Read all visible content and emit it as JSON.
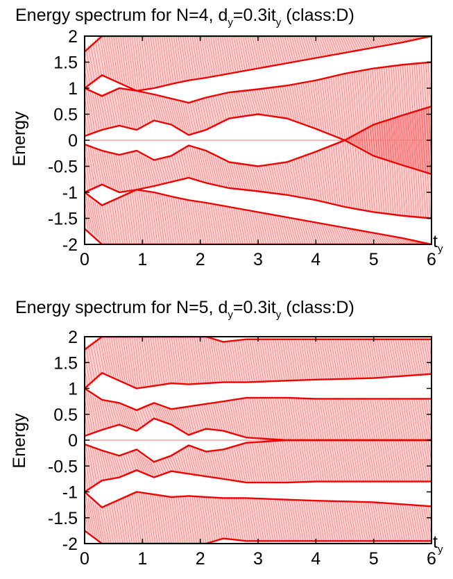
{
  "colors": {
    "spectrum": "#ee0000",
    "fill": "#ff3b3b",
    "frame": "#000000",
    "background": "#ffffff"
  },
  "chart_data": [
    {
      "type": "line",
      "title": {
        "text": "Energy spectrum for N=4, d",
        "sub_d": "y",
        "mid": "=0.3it",
        "sub_t": "y",
        "tail": " (class:D)"
      },
      "xlabel": {
        "main": "t",
        "sub": "y"
      },
      "ylabel": "Energy",
      "xlim": [
        0,
        6
      ],
      "ylim": [
        -2,
        2
      ],
      "x_ticks": [
        0,
        1,
        2,
        3,
        4,
        5,
        6
      ],
      "x_tick_labels": [
        "0",
        "1",
        "2",
        "3",
        "4",
        "5",
        "6"
      ],
      "y_ticks": [
        2,
        1.5,
        1,
        0.5,
        0,
        -0.5,
        -1,
        -1.5,
        -2
      ],
      "y_tick_labels": [
        "2",
        "1.5",
        "1",
        "0.5",
        "0",
        "-0.5",
        "-1",
        "-1.5",
        "-2"
      ],
      "grid": false,
      "zero_mode_x": [
        0,
        6
      ],
      "series": [
        {
          "x": [
            0,
            0.3,
            0.6,
            0.9,
            1.2,
            1.5,
            1.8,
            2.1,
            2.5,
            3,
            3.5,
            4,
            4.5,
            5,
            5.5,
            6
          ],
          "y": [
            1.7,
            2.0,
            2.0,
            2.0,
            2.0,
            2.0,
            2.0,
            2.0,
            2.0,
            2.0,
            2.0,
            2.0,
            2.0,
            2.0,
            2.0,
            2.0
          ]
        },
        {
          "x": [
            0,
            0.3,
            0.6,
            0.9,
            1.2,
            1.5,
            1.8,
            2.1,
            2.5,
            3,
            3.5,
            4,
            4.5,
            5,
            5.5,
            6
          ],
          "y": [
            1.0,
            1.25,
            1.1,
            0.95,
            1.0,
            1.08,
            1.15,
            1.2,
            1.28,
            1.38,
            1.48,
            1.58,
            1.68,
            1.78,
            1.88,
            2.0
          ]
        },
        {
          "x": [
            0,
            0.3,
            0.6,
            0.9,
            1.2,
            1.5,
            1.8,
            2.1,
            2.5,
            3,
            3.5,
            4,
            4.5,
            5,
            5.5,
            6
          ],
          "y": [
            1.0,
            0.85,
            1.0,
            0.95,
            0.88,
            0.8,
            0.72,
            0.82,
            0.92,
            0.98,
            1.05,
            1.15,
            1.28,
            1.38,
            1.45,
            1.5
          ]
        },
        {
          "x": [
            0,
            0.3,
            0.6,
            0.9,
            1.2,
            1.5,
            1.8,
            2.1,
            2.5,
            3,
            3.5,
            4,
            4.5,
            5,
            5.5,
            6
          ],
          "y": [
            0.08,
            0.2,
            0.28,
            0.2,
            0.38,
            0.3,
            0.1,
            0.2,
            0.42,
            0.5,
            0.42,
            0.22,
            0.0,
            -0.3,
            -0.48,
            -0.65
          ]
        },
        {
          "x": [
            0,
            0.3,
            0.6,
            0.9,
            1.2,
            1.5,
            1.8,
            2.1,
            2.5,
            3,
            3.5,
            4,
            4.5,
            5,
            5.5,
            6
          ],
          "y": [
            -0.08,
            -0.2,
            -0.28,
            -0.2,
            -0.38,
            -0.3,
            -0.1,
            -0.2,
            -0.42,
            -0.5,
            -0.42,
            -0.22,
            0.0,
            0.3,
            0.48,
            0.65
          ]
        },
        {
          "x": [
            0,
            0.3,
            0.6,
            0.9,
            1.2,
            1.5,
            1.8,
            2.1,
            2.5,
            3,
            3.5,
            4,
            4.5,
            5,
            5.5,
            6
          ],
          "y": [
            -1.0,
            -0.85,
            -1.0,
            -0.95,
            -0.88,
            -0.8,
            -0.72,
            -0.82,
            -0.92,
            -0.98,
            -1.05,
            -1.15,
            -1.28,
            -1.38,
            -1.45,
            -1.5
          ]
        },
        {
          "x": [
            0,
            0.3,
            0.6,
            0.9,
            1.2,
            1.5,
            1.8,
            2.1,
            2.5,
            3,
            3.5,
            4,
            4.5,
            5,
            5.5,
            6
          ],
          "y": [
            -1.0,
            -1.25,
            -1.1,
            -0.95,
            -1.0,
            -1.08,
            -1.15,
            -1.2,
            -1.28,
            -1.38,
            -1.48,
            -1.58,
            -1.68,
            -1.78,
            -1.88,
            -2.0
          ]
        },
        {
          "x": [
            0,
            0.3,
            0.6,
            0.9,
            1.2,
            1.5,
            1.8,
            2.1,
            2.5,
            3,
            3.5,
            4,
            4.5,
            5,
            5.5,
            6
          ],
          "y": [
            -1.7,
            -2.0,
            -2.0,
            -2.0,
            -2.0,
            -2.0,
            -2.0,
            -2.0,
            -2.0,
            -2.0,
            -2.0,
            -2.0,
            -2.0,
            -2.0,
            -2.0,
            -2.0
          ]
        }
      ],
      "bands": [
        [
          0,
          1
        ],
        [
          2,
          3
        ],
        [
          4,
          5
        ],
        [
          6,
          7
        ]
      ]
    },
    {
      "type": "line",
      "title": {
        "text": "Energy spectrum for N=5, d",
        "sub_d": "y",
        "mid": "=0.3it",
        "sub_t": "y",
        "tail": " (class:D)"
      },
      "xlabel": {
        "main": "t",
        "sub": "y"
      },
      "ylabel": "Energy",
      "xlim": [
        0,
        6
      ],
      "ylim": [
        -2,
        2
      ],
      "x_ticks": [
        0,
        1,
        2,
        3,
        4,
        5,
        6
      ],
      "x_tick_labels": [
        "0",
        "1",
        "2",
        "3",
        "4",
        "5",
        "6"
      ],
      "y_ticks": [
        2,
        1.5,
        1,
        0.5,
        0,
        -0.5,
        -1,
        -1.5,
        -2
      ],
      "y_tick_labels": [
        "2",
        "1.5",
        "1",
        "0.5",
        "0",
        "-0.5",
        "-1",
        "-1.5",
        "-2"
      ],
      "grid": false,
      "zero_mode_x": [
        0,
        6
      ],
      "series": [
        {
          "x": [
            0,
            0.3,
            0.6,
            0.9,
            1.2,
            1.5,
            1.8,
            2.1,
            2.4,
            2.8,
            3.5,
            4,
            5,
            6
          ],
          "y": [
            1.75,
            2.0,
            2.0,
            2.0,
            2.0,
            2.0,
            2.0,
            2.0,
            1.9,
            1.95,
            1.95,
            1.95,
            1.95,
            1.95
          ]
        },
        {
          "x": [
            0,
            0.3,
            0.6,
            0.9,
            1.2,
            1.5,
            1.8,
            2.1,
            2.4,
            2.8,
            3.5,
            4,
            5,
            6
          ],
          "y": [
            1.0,
            1.3,
            1.15,
            1.0,
            1.05,
            1.1,
            1.08,
            1.1,
            1.12,
            1.12,
            1.15,
            1.17,
            1.2,
            1.28
          ]
        },
        {
          "x": [
            0,
            0.3,
            0.6,
            0.9,
            1.2,
            1.5,
            1.8,
            2.1,
            2.4,
            2.8,
            3.5,
            4,
            5,
            6
          ],
          "y": [
            1.0,
            0.78,
            0.72,
            0.58,
            0.72,
            0.6,
            0.65,
            0.7,
            0.75,
            0.82,
            0.82,
            0.8,
            0.8,
            0.8
          ]
        },
        {
          "x": [
            0,
            0.3,
            0.6,
            0.9,
            1.2,
            1.5,
            1.8,
            2.1,
            2.4,
            2.8,
            3.5,
            4,
            5,
            6
          ],
          "y": [
            0.08,
            0.2,
            0.3,
            0.18,
            0.42,
            0.3,
            0.1,
            0.22,
            0.18,
            0.05,
            0.0,
            0.0,
            0.0,
            0.0
          ]
        },
        {
          "x": [
            0,
            0.3,
            0.6,
            0.9,
            1.2,
            1.5,
            1.8,
            2.1,
            2.4,
            2.8,
            3.5,
            4,
            5,
            6
          ],
          "y": [
            -0.08,
            -0.2,
            -0.3,
            -0.18,
            -0.42,
            -0.3,
            -0.1,
            -0.22,
            -0.18,
            -0.05,
            0.0,
            0.0,
            0.0,
            0.0
          ]
        },
        {
          "x": [
            0,
            0.3,
            0.6,
            0.9,
            1.2,
            1.5,
            1.8,
            2.1,
            2.4,
            2.8,
            3.5,
            4,
            5,
            6
          ],
          "y": [
            -1.0,
            -0.78,
            -0.72,
            -0.58,
            -0.72,
            -0.6,
            -0.65,
            -0.7,
            -0.75,
            -0.82,
            -0.82,
            -0.8,
            -0.8,
            -0.8
          ]
        },
        {
          "x": [
            0,
            0.3,
            0.6,
            0.9,
            1.2,
            1.5,
            1.8,
            2.1,
            2.4,
            2.8,
            3.5,
            4,
            5,
            6
          ],
          "y": [
            -1.0,
            -1.3,
            -1.15,
            -1.0,
            -1.05,
            -1.1,
            -1.08,
            -1.1,
            -1.12,
            -1.12,
            -1.15,
            -1.17,
            -1.2,
            -1.28
          ]
        },
        {
          "x": [
            0,
            0.3,
            0.6,
            0.9,
            1.2,
            1.5,
            1.8,
            2.1,
            2.4,
            2.8,
            3.5,
            4,
            5,
            6
          ],
          "y": [
            -1.75,
            -2.0,
            -2.0,
            -2.0,
            -2.0,
            -2.0,
            -2.0,
            -2.0,
            -1.9,
            -1.95,
            -1.95,
            -1.95,
            -1.95,
            -1.95
          ]
        }
      ],
      "bands": [
        [
          0,
          1
        ],
        [
          2,
          3
        ],
        [
          4,
          5
        ],
        [
          6,
          7
        ]
      ]
    }
  ]
}
